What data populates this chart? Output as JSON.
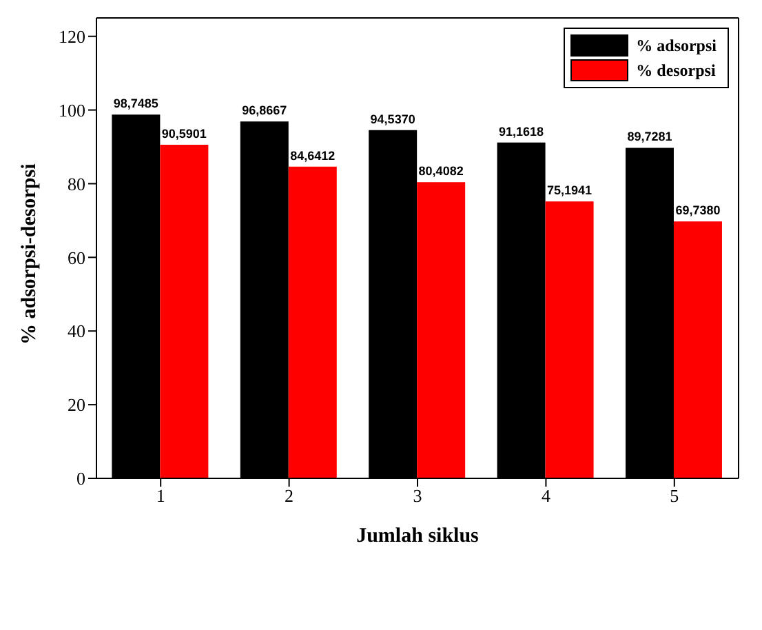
{
  "chart_data": {
    "type": "bar",
    "xlabel": "Jumlah siklus",
    "ylabel": "% adsorpsi-desorpsi",
    "categories": [
      "1",
      "2",
      "3",
      "4",
      "5"
    ],
    "series": [
      {
        "name": "% adsorpsi",
        "color": "#000000",
        "values": [
          98.7485,
          96.8667,
          94.537,
          91.1618,
          89.7281
        ],
        "value_labels": [
          "98,7485",
          "96,8667",
          "94,5370",
          "91,1618",
          "89,7281"
        ]
      },
      {
        "name": "% desorpsi",
        "color": "#ff0000",
        "values": [
          90.5901,
          84.6412,
          80.4082,
          75.1941,
          69.738
        ],
        "value_labels": [
          "90,5901",
          "84,6412",
          "80,4082",
          "75,1941",
          "69,7380"
        ]
      }
    ],
    "ylim": [
      0,
      125
    ],
    "yticks": [
      0,
      20,
      40,
      60,
      80,
      100,
      120
    ],
    "grid": false,
    "legend": "top right"
  }
}
